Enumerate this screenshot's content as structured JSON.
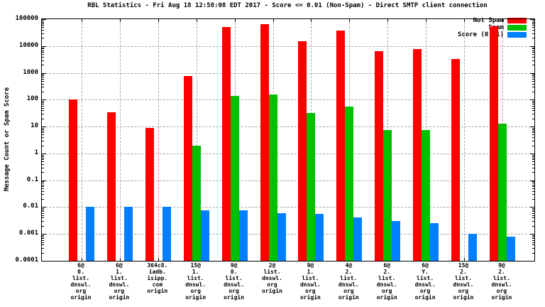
{
  "chart_data": {
    "type": "bar",
    "title": "RBL Statistics - Fri Aug 18 12:58:08 EDT 2017 - Score <= 0.01 (Non-Spam) - Direct SMTP client connection",
    "ylabel": "Message Count or Spam Score",
    "xlabel": "",
    "y_scale": "log",
    "ylim": [
      0.0001,
      100000
    ],
    "ytick_labels": [
      "100000",
      "10000",
      "1000",
      "100",
      "10",
      "1",
      "0.1",
      "0.01",
      "0.001",
      "0.0001"
    ],
    "grid": true,
    "legend_position": "top-right",
    "categories": [
      [
        "6@",
        "0.",
        "list.",
        "dnswl.",
        "org",
        "origin"
      ],
      [
        "6@",
        "1.",
        "list.",
        "dnswl.",
        "org",
        "origin"
      ],
      [
        "364c8.",
        "iadb.",
        "isipp.",
        "com",
        "origin"
      ],
      [
        "15@",
        "1.",
        "list.",
        "dnswl.",
        "org",
        "origin"
      ],
      [
        "9@",
        "0.",
        "list.",
        "dnswl.",
        "org",
        "origin"
      ],
      [
        "2@",
        "list.",
        "dnswl.",
        "org",
        "origin"
      ],
      [
        "9@",
        "1.",
        "list.",
        "dnswl.",
        "org",
        "origin"
      ],
      [
        "4@",
        "2.",
        "list.",
        "dnswl.",
        "org",
        "origin"
      ],
      [
        "6@",
        "2.",
        "list.",
        "dnswl.",
        "org",
        "origin"
      ],
      [
        "6@",
        "Y.",
        "list.",
        "dnswl.",
        "org",
        "origin"
      ],
      [
        "15@",
        "2.",
        "list.",
        "dnswl.",
        "org",
        "origin"
      ],
      [
        "9@",
        "2.",
        "list.",
        "dnswl.",
        "org",
        "origin"
      ]
    ],
    "series": [
      {
        "name": "Not Spam",
        "color": "#ff0000",
        "values": [
          100,
          35,
          9,
          780,
          52000,
          66000,
          15000,
          38000,
          6600,
          7600,
          3300,
          55000
        ]
      },
      {
        "name": "Spam",
        "color": "#00c000",
        "values": [
          null,
          null,
          null,
          2,
          140,
          160,
          32,
          55,
          7.5,
          7.5,
          null,
          13
        ]
      },
      {
        "name": "Score (0..1)",
        "color": "#0080ff",
        "values": [
          0.01,
          0.01,
          0.01,
          0.0075,
          0.0075,
          0.006,
          0.0055,
          0.004,
          0.003,
          0.0026,
          0.001,
          0.0008
        ]
      }
    ]
  }
}
